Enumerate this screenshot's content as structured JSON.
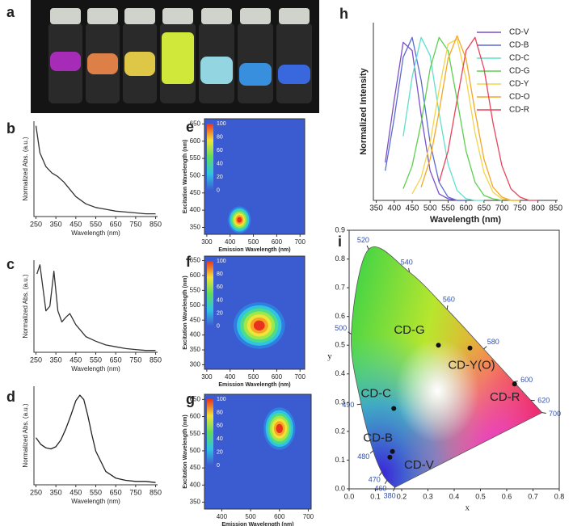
{
  "chart_data": [
    {
      "type": "photo",
      "panel": "a"
    },
    {
      "type": "line",
      "panel": "b",
      "ylabel": "Normalized Abs. (a.u.)",
      "xlabel": "Wavelength (nm)",
      "x": [
        250,
        270,
        300,
        330,
        360,
        390,
        420,
        450,
        500,
        550,
        600,
        650,
        700,
        750,
        800,
        850
      ],
      "series": [
        {
          "color": "#333333",
          "values": [
            1.0,
            0.7,
            0.55,
            0.48,
            0.44,
            0.38,
            0.3,
            0.22,
            0.14,
            0.1,
            0.08,
            0.06,
            0.05,
            0.04,
            0.03,
            0.03
          ]
        }
      ],
      "xlim": [
        240,
        860
      ],
      "xticks": [
        250,
        350,
        450,
        550,
        650,
        750,
        850
      ],
      "ylim": [
        0,
        1.05
      ]
    },
    {
      "type": "line",
      "panel": "c",
      "ylabel": "Normalized Abs. (a.u.)",
      "xlabel": "Wavelength (nm)",
      "x": [
        255,
        270,
        285,
        300,
        320,
        340,
        360,
        380,
        400,
        420,
        450,
        500,
        550,
        600,
        650,
        700,
        750,
        800,
        850
      ],
      "series": [
        {
          "color": "#333333",
          "values": [
            0.85,
            0.95,
            0.7,
            0.45,
            0.5,
            0.88,
            0.45,
            0.33,
            0.38,
            0.42,
            0.3,
            0.17,
            0.12,
            0.08,
            0.06,
            0.04,
            0.03,
            0.02,
            0.02
          ]
        }
      ],
      "xlim": [
        240,
        860
      ],
      "xticks": [
        250,
        350,
        450,
        550,
        650,
        750,
        850
      ],
      "ylim": [
        0,
        1
      ]
    },
    {
      "type": "line",
      "panel": "d",
      "ylabel": "Normalized Abs. (a.u.)",
      "xlabel": "Wavelength (nm)",
      "x": [
        250,
        275,
        300,
        325,
        350,
        375,
        400,
        425,
        450,
        470,
        490,
        510,
        530,
        550,
        600,
        650,
        700,
        750,
        800,
        850
      ],
      "series": [
        {
          "color": "#222222",
          "values": [
            0.42,
            0.36,
            0.33,
            0.32,
            0.34,
            0.4,
            0.5,
            0.62,
            0.75,
            0.8,
            0.76,
            0.62,
            0.45,
            0.3,
            0.12,
            0.06,
            0.04,
            0.03,
            0.03,
            0.02
          ]
        }
      ],
      "xlim": [
        240,
        860
      ],
      "xticks": [
        250,
        350,
        450,
        550,
        650,
        750,
        850
      ],
      "ylim": [
        0,
        0.88
      ]
    },
    {
      "type": "heatmap",
      "panel": "e",
      "xlabel": "Emission Wavelength (nm)",
      "ylabel": "Excitation Wavelength (nm)",
      "xlim": [
        290,
        720
      ],
      "xticks": [
        300,
        400,
        500,
        600,
        700
      ],
      "ylim": [
        330,
        665
      ],
      "yticks": [
        350,
        400,
        450,
        500,
        550,
        600,
        650
      ],
      "colorbar_ticks": [
        0,
        20,
        40,
        60,
        80,
        100
      ],
      "peak": {
        "x": 440,
        "y": 372,
        "fwhm_x": 75,
        "fwhm_y": 60
      }
    },
    {
      "type": "heatmap",
      "panel": "f",
      "xlabel": "Emission Wavelength (nm)",
      "ylabel": "Excitation Wavelength (nm)",
      "xlim": [
        290,
        720
      ],
      "xticks": [
        300,
        400,
        500,
        600,
        700
      ],
      "ylim": [
        285,
        665
      ],
      "yticks": [
        300,
        350,
        400,
        450,
        500,
        550,
        600,
        650
      ],
      "colorbar_ticks": [
        0,
        20,
        40,
        60,
        80,
        100
      ],
      "peak": {
        "x": 525,
        "y": 432,
        "fwhm_x": 170,
        "fwhm_y": 120
      }
    },
    {
      "type": "heatmap",
      "panel": "g",
      "xlabel": "Emission Wavelength (nm)",
      "ylabel": "Excitation Wavelength (nm)",
      "xlim": [
        340,
        710
      ],
      "xticks": [
        400,
        500,
        600,
        700
      ],
      "ylim": [
        330,
        665
      ],
      "yticks": [
        350,
        400,
        450,
        500,
        550,
        600,
        650
      ],
      "colorbar_ticks": [
        0,
        20,
        40,
        60,
        80,
        100
      ],
      "peak": {
        "x": 600,
        "y": 565,
        "fwhm_x": 85,
        "fwhm_y": 95
      }
    },
    {
      "type": "line",
      "panel": "h",
      "ylabel": "Normalized Intensity",
      "xlabel": "Wavelength (nm)",
      "legend": "upper right",
      "x": [
        350,
        375,
        400,
        425,
        450,
        475,
        500,
        525,
        550,
        575,
        600,
        625,
        650,
        675,
        700,
        725,
        750,
        775,
        800,
        825,
        850
      ],
      "series": [
        {
          "name": "CD-V",
          "color": "#7b4fc9",
          "values": [
            null,
            0.23,
            0.61,
            0.96,
            0.91,
            0.52,
            0.18,
            0.04,
            0.01,
            0,
            0,
            null,
            null,
            null,
            null,
            null,
            null,
            null,
            null,
            null,
            null
          ]
        },
        {
          "name": "CD-B",
          "color": "#5a6ccf",
          "values": [
            null,
            0.18,
            0.5,
            0.87,
            0.99,
            0.73,
            0.35,
            0.11,
            0.02,
            0,
            0,
            null,
            null,
            null,
            null,
            null,
            null,
            null,
            null,
            null,
            null
          ]
        },
        {
          "name": "CD-C",
          "color": "#5fe0c8",
          "values": [
            null,
            null,
            null,
            0.39,
            0.75,
            0.99,
            0.88,
            0.53,
            0.22,
            0.06,
            0.01,
            0,
            0,
            null,
            null,
            null,
            null,
            null,
            null,
            null,
            null
          ]
        },
        {
          "name": "CD-G",
          "color": "#5ccf4f",
          "values": [
            null,
            null,
            null,
            0.07,
            0.21,
            0.47,
            0.8,
            0.99,
            0.91,
            0.61,
            0.3,
            0.11,
            0.03,
            0.01,
            0,
            null,
            null,
            null,
            null,
            null,
            null
          ]
        },
        {
          "name": "CD-Y",
          "color": "#f0d44a",
          "values": [
            null,
            null,
            null,
            null,
            0.04,
            0.14,
            0.35,
            0.67,
            0.95,
            0.98,
            0.74,
            0.41,
            0.17,
            0.05,
            0.01,
            0,
            0,
            null,
            null,
            null,
            null
          ]
        },
        {
          "name": "CD-O",
          "color": "#f5a623",
          "values": [
            null,
            null,
            null,
            null,
            null,
            0.08,
            0.25,
            0.54,
            0.86,
            1.0,
            0.86,
            0.54,
            0.25,
            0.08,
            0.02,
            0,
            0,
            null,
            null,
            null,
            null
          ]
        },
        {
          "name": "CD-R",
          "color": "#e8435a",
          "values": [
            null,
            null,
            null,
            null,
            null,
            null,
            null,
            0.11,
            0.3,
            0.61,
            0.91,
            0.99,
            0.8,
            0.47,
            0.21,
            0.07,
            0.02,
            0,
            0,
            null,
            null
          ]
        }
      ],
      "xlim": [
        342,
        855
      ],
      "xticks": [
        350,
        400,
        450,
        500,
        550,
        600,
        650,
        700,
        750,
        800,
        850
      ],
      "ylim": [
        0,
        1.08
      ]
    },
    {
      "type": "cie",
      "panel": "i",
      "xlabel": "x",
      "ylabel": "y",
      "xlim": [
        0,
        0.8
      ],
      "ylim": [
        0,
        0.9
      ],
      "xticks": [
        {
          "value": 0,
          "label": "0.0"
        },
        0.1,
        0.2,
        0.3,
        0.4,
        0.5,
        0.6,
        0.7,
        0.8
      ],
      "yticks": [
        {
          "value": 0,
          "label": "0.0"
        },
        0.1,
        0.2,
        0.3,
        0.4,
        0.5,
        0.6,
        0.7,
        0.8,
        0.9
      ],
      "locus": [
        {
          "nm": 380,
          "x": 0.1741,
          "y": 0.005
        },
        {
          "nm": 460,
          "x": 0.144,
          "y": 0.0297
        },
        {
          "nm": 470,
          "x": 0.1241,
          "y": 0.0578
        },
        {
          "nm": 480,
          "x": 0.0913,
          "y": 0.1327
        },
        {
          "nm": 490,
          "x": 0.0454,
          "y": 0.295
        },
        {
          "nm": 500,
          "x": 0.0082,
          "y": 0.5384
        },
        {
          "nm": 520,
          "x": 0.0743,
          "y": 0.8338
        },
        {
          "nm": 540,
          "x": 0.2296,
          "y": 0.7543
        },
        {
          "nm": 560,
          "x": 0.3731,
          "y": 0.6245
        },
        {
          "nm": 580,
          "x": 0.5125,
          "y": 0.4866
        },
        {
          "nm": 600,
          "x": 0.627,
          "y": 0.3725
        },
        {
          "nm": 620,
          "x": 0.6915,
          "y": 0.3083
        },
        {
          "nm": 700,
          "x": 0.7347,
          "y": 0.2653
        }
      ],
      "points": [
        {
          "label": "CD-G",
          "x": 0.34,
          "y": 0.5
        },
        {
          "label": "CD-Y(O)",
          "x": 0.46,
          "y": 0.49
        },
        {
          "label": "CD-R",
          "x": 0.63,
          "y": 0.365
        },
        {
          "label": "CD-C",
          "x": 0.17,
          "y": 0.28
        },
        {
          "label": "CD-B",
          "x": 0.165,
          "y": 0.13
        },
        {
          "label": "CD-V",
          "x": 0.155,
          "y": 0.11
        }
      ]
    }
  ]
}
